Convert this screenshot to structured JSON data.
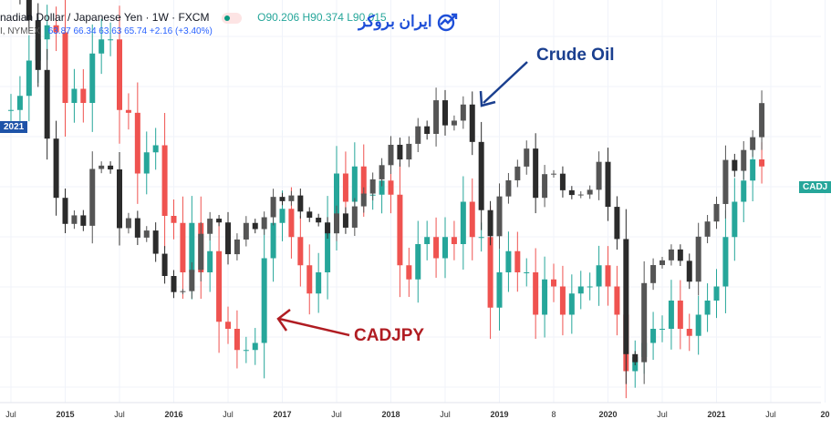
{
  "header": {
    "symbol_line": "nadian Dollar / Japanese Yen · 1W · FXCM",
    "ohlc": "O90.206 H90.374 L90.015",
    "overlay_line_prefix": "I, NYMEX",
    "overlay_values": "63.87 66.34 63.63 65.74 +2.16 (+3.40%)"
  },
  "logo": {
    "text": "ایران بروکر",
    "icon": "chart-trend-icon"
  },
  "labels": {
    "left_tag": "2021",
    "right_tag": "CADJ"
  },
  "annotations": {
    "crude_oil": "Crude Oil",
    "cadjpy": "CADJPY"
  },
  "colors": {
    "up": "#26a69a",
    "down": "#ef5350",
    "oil": "#2b2b2b",
    "oil_label": "#1a3f8f",
    "cad_label": "#b01c22"
  },
  "chart_data": {
    "type": "candlestick",
    "x_ticks": [
      "Jul",
      "2015",
      "Jul",
      "2016",
      "Jul",
      "2017",
      "Jul",
      "2018",
      "Jul",
      "2019",
      "8",
      "2020",
      "Jul",
      "2021",
      "Jul",
      "20"
    ],
    "x_start": "2014-07",
    "x_step": "month",
    "series": [
      {
        "name": "CADJPY",
        "close": [
          94.5,
          95.5,
          98,
          99.5,
          100.5,
          100,
          95,
          96,
          95,
          98.5,
          99.5,
          99.5,
          94.5,
          94.3,
          90,
          91.5,
          92,
          87,
          86.5,
          83,
          86.5,
          83,
          84.5,
          79.5,
          79,
          77.5,
          77.5,
          78,
          84,
          86.5,
          87.5,
          85.5,
          83.5,
          81.5,
          83,
          86.5,
          90,
          88,
          90.5,
          88.5,
          88.5,
          89.5,
          88.5,
          83.5,
          82.5,
          85,
          85.5,
          84,
          85.5,
          85,
          88,
          85.5,
          85.5,
          80.5,
          83,
          84.5,
          83,
          83,
          80,
          82.5,
          82,
          80,
          81.5,
          82,
          82,
          83.5,
          82,
          80,
          76,
          77,
          78,
          79,
          79,
          81,
          79,
          78.5,
          80,
          81,
          82,
          85.5,
          88,
          89.5,
          91,
          90.5
        ]
      },
      {
        "name": "Crude Oil",
        "close": [
          98,
          96,
          91,
          80.5,
          66,
          53.5,
          48,
          49.8,
          47.6,
          59.6,
          60.3,
          59.5,
          47.1,
          49.2,
          45.1,
          46.6,
          41.7,
          37,
          33.6,
          33.8,
          38.3,
          45.9,
          49.1,
          48.3,
          41.6,
          44.7,
          48.2,
          46.9,
          49.4,
          53.7,
          52.8,
          54,
          50.6,
          49.3,
          48.3,
          46,
          50.2,
          47.2,
          51.7,
          54.4,
          57.4,
          60.4,
          64.7,
          61.6,
          64.9,
          68.6,
          67,
          74.1,
          68.8,
          69.8,
          73.2,
          65.3,
          50.9,
          45.4,
          53.8,
          57.2,
          60.1,
          63.9,
          53.5,
          58.5,
          58.6,
          55.1,
          54.1,
          54.2,
          55.2,
          61.1,
          51.6,
          44.8,
          20.5,
          18.8,
          35.5,
          39.3,
          40.3,
          42.6,
          40.2,
          35.8,
          45.3,
          48.5,
          52.2,
          61.5,
          59.2,
          63.6,
          66.3,
          73.5
        ]
      }
    ],
    "grid": true
  }
}
